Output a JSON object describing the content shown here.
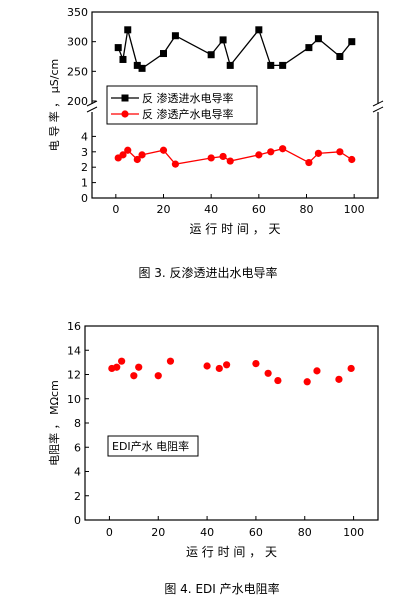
{
  "chart_data": [
    {
      "type": "line",
      "title": "",
      "caption": "图 3.  反渗透进出水电导率",
      "xlabel": "运 行 时 间 ， 天",
      "ylabel": "电 导 率 ， μS/cm",
      "xlim": [
        -10,
        110
      ],
      "x_ticks": [
        "0",
        "20",
        "40",
        "60",
        "80",
        "100"
      ],
      "y_broken": true,
      "upper_ylim": [
        200,
        350
      ],
      "upper_ticks": [
        "200",
        "250",
        "300",
        "350"
      ],
      "lower_ylim": [
        0,
        5
      ],
      "lower_ticks": [
        "0",
        "1",
        "2",
        "3",
        "4"
      ],
      "legend_placement": "middle-left",
      "series": [
        {
          "name": "反  渗透进水电导率",
          "color": "#000000",
          "marker": "square",
          "axis": "upper",
          "x": [
            1,
            3,
            5,
            9,
            11,
            20,
            25,
            40,
            45,
            48,
            60,
            65,
            70,
            81,
            85,
            94,
            99
          ],
          "y": [
            290,
            270,
            320,
            260,
            255,
            280,
            310,
            278,
            303,
            260,
            320,
            260,
            260,
            290,
            305,
            275,
            300
          ]
        },
        {
          "name": "反  渗透产水电导率",
          "color": "#ff0000",
          "marker": "circle",
          "axis": "lower",
          "x": [
            1,
            3,
            5,
            9,
            11,
            20,
            25,
            40,
            45,
            48,
            60,
            65,
            70,
            81,
            85,
            94,
            99
          ],
          "y": [
            2.6,
            2.8,
            3.1,
            2.5,
            2.8,
            3.1,
            2.2,
            2.6,
            2.7,
            2.4,
            2.8,
            3.0,
            3.2,
            2.3,
            2.9,
            3.0,
            2.5
          ]
        }
      ]
    },
    {
      "type": "scatter",
      "title": "",
      "caption": "图 4.  EDI 产水电阻率",
      "xlabel": "运 行 时 间 ， 天",
      "ylabel": "电阻率 ， MΩcm",
      "xlim": [
        -10,
        110
      ],
      "x_ticks": [
        "0",
        "20",
        "40",
        "60",
        "80",
        "100"
      ],
      "ylim": [
        0,
        16
      ],
      "y_ticks": [
        "0",
        "2",
        "4",
        "6",
        "8",
        "10",
        "12",
        "14",
        "16"
      ],
      "legend_placement": "middle-left",
      "series": [
        {
          "name": "EDI产水  电阻率",
          "color": "#ff0000",
          "marker": "circle",
          "x": [
            1,
            3,
            5,
            10,
            12,
            20,
            25,
            40,
            45,
            48,
            60,
            65,
            69,
            81,
            85,
            94,
            99
          ],
          "y": [
            12.5,
            12.6,
            13.1,
            11.9,
            12.6,
            11.9,
            13.1,
            12.7,
            12.5,
            12.8,
            12.9,
            12.1,
            11.5,
            11.4,
            12.3,
            11.6,
            12.5
          ]
        }
      ]
    }
  ]
}
